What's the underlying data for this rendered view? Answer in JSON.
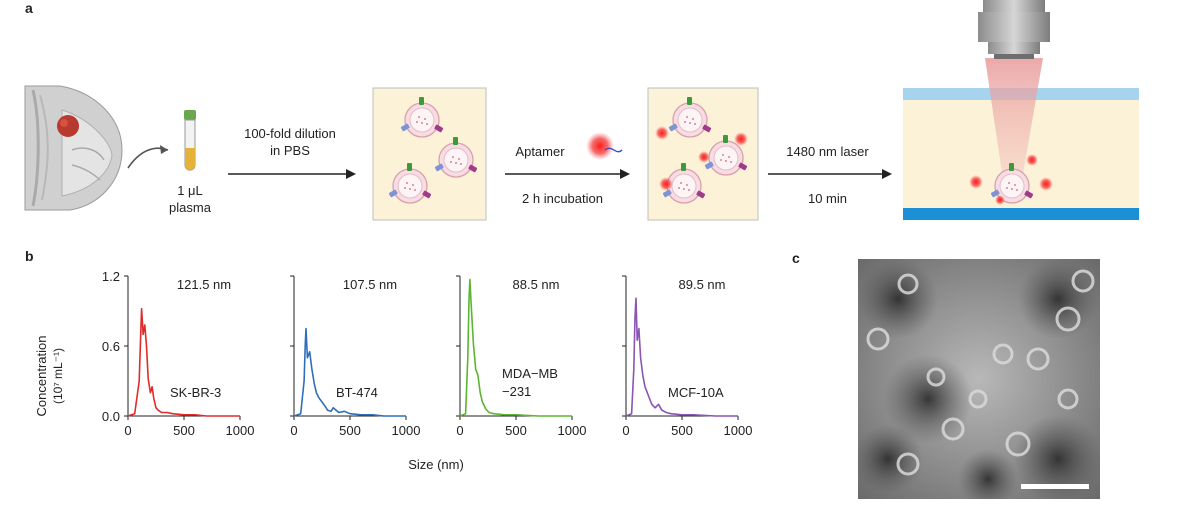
{
  "panels": {
    "a": "a",
    "b": "b",
    "c": "c"
  },
  "schematic": {
    "plasma_label_line1": "1 μL",
    "plasma_label_line2": "plasma",
    "step1_line1": "100-fold dilution",
    "step1_line2": "in PBS",
    "aptamer_label": "Aptamer",
    "step2_label": "2 h incubation",
    "step3_label": "1480 nm laser",
    "step3_time": "10 min"
  },
  "shared_axis": {
    "xlabel": "Size (nm)",
    "ylabel_line1": "Concentration",
    "ylabel_line2": "(10⁷ mL⁻¹)"
  },
  "chart_data": [
    {
      "type": "line",
      "name": "SK-BR-3",
      "color": "#e02b2b",
      "peak_label": "121.5 nm",
      "sample_label_line1": "SK-BR-3",
      "sample_label_line2": "",
      "x": [
        0,
        60,
        100,
        115,
        121.5,
        135,
        150,
        165,
        180,
        200,
        215,
        230,
        250,
        270,
        300,
        350,
        400,
        500,
        600,
        700,
        800,
        900,
        1000
      ],
      "y": [
        0,
        0.02,
        0.3,
        0.75,
        0.92,
        0.7,
        0.78,
        0.6,
        0.32,
        0.2,
        0.25,
        0.15,
        0.07,
        0.05,
        0.03,
        0.03,
        0.02,
        0.01,
        0.01,
        0.0,
        0.0,
        0.0,
        0.0
      ],
      "xlim": [
        0,
        1000
      ],
      "ylim": [
        0,
        1.2
      ],
      "xticks": [
        "0",
        "500",
        "1000"
      ],
      "yticks": [
        "0.0",
        "0.6",
        "1.2"
      ]
    },
    {
      "type": "line",
      "name": "BT-474",
      "color": "#2f6fb8",
      "peak_label": "107.5 nm",
      "sample_label_line1": "BT-474",
      "sample_label_line2": "",
      "x": [
        0,
        60,
        90,
        100,
        107.5,
        120,
        140,
        160,
        180,
        200,
        220,
        250,
        280,
        300,
        330,
        350,
        400,
        450,
        500,
        600,
        700,
        800,
        1000
      ],
      "y": [
        0,
        0.02,
        0.3,
        0.6,
        0.75,
        0.5,
        0.55,
        0.4,
        0.28,
        0.2,
        0.16,
        0.12,
        0.08,
        0.05,
        0.04,
        0.07,
        0.03,
        0.04,
        0.02,
        0.01,
        0.01,
        0.0,
        0.0
      ],
      "xlim": [
        0,
        1000
      ],
      "ylim": [
        0,
        1.2
      ],
      "xticks": [
        "0",
        "500",
        "1000"
      ],
      "yticks": [
        "0.0",
        "0.6",
        "1.2"
      ]
    },
    {
      "type": "line",
      "name": "MDA-MB-231",
      "color": "#5cb531",
      "peak_label": "88.5 nm",
      "sample_label_line1": "MDA−MB",
      "sample_label_line2": "−231",
      "x": [
        0,
        50,
        70,
        80,
        88.5,
        100,
        120,
        140,
        160,
        180,
        200,
        230,
        260,
        300,
        400,
        500,
        700,
        1000
      ],
      "y": [
        0,
        0.02,
        0.5,
        1.0,
        1.17,
        0.95,
        0.62,
        0.4,
        0.35,
        0.2,
        0.12,
        0.06,
        0.03,
        0.02,
        0.01,
        0.01,
        0.0,
        0.0
      ],
      "xlim": [
        0,
        1000
      ],
      "ylim": [
        0,
        1.2
      ],
      "xticks": [
        "0",
        "500",
        "1000"
      ],
      "yticks": [
        "0.0",
        "0.6",
        "1.2"
      ]
    },
    {
      "type": "line",
      "name": "MCF-10A",
      "color": "#8a55b5",
      "peak_label": "89.5 nm",
      "sample_label_line1": "MCF-10A",
      "sample_label_line2": "",
      "x": [
        0,
        50,
        70,
        80,
        89.5,
        100,
        115,
        130,
        150,
        170,
        190,
        210,
        230,
        260,
        290,
        320,
        360,
        400,
        500,
        600,
        800,
        1000
      ],
      "y": [
        0,
        0.02,
        0.4,
        0.85,
        1.01,
        0.65,
        0.75,
        0.5,
        0.35,
        0.25,
        0.2,
        0.15,
        0.1,
        0.07,
        0.1,
        0.05,
        0.03,
        0.02,
        0.01,
        0.01,
        0.0,
        0.0
      ],
      "xlim": [
        0,
        1000
      ],
      "ylim": [
        0,
        1.2
      ],
      "xticks": [
        "0",
        "500",
        "1000"
      ],
      "yticks": [
        "0.0",
        "0.6",
        "1.2"
      ]
    }
  ]
}
